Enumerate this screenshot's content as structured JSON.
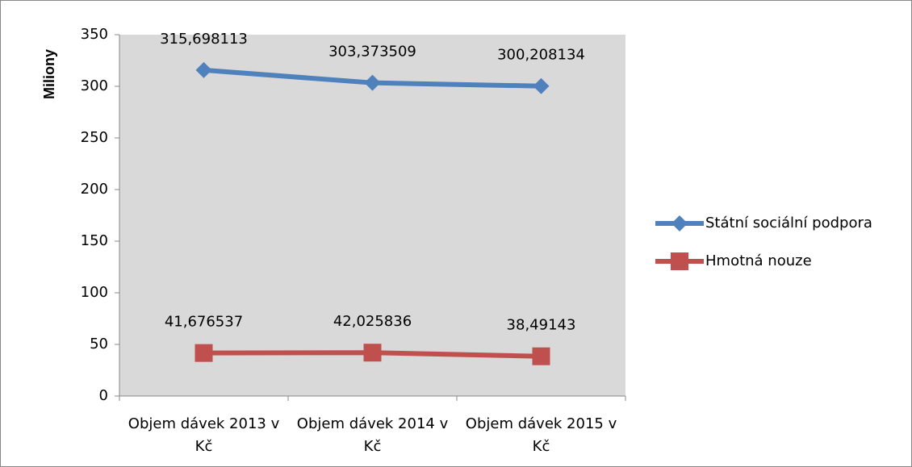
{
  "chart_data": {
    "type": "line",
    "y_label": "Miliony",
    "categories": [
      "Objem dávek 2013 v Kč",
      "Objem dávek 2014 v Kč",
      "Objem dávek 2015 v Kč"
    ],
    "series": [
      {
        "name": "Státní sociální podpora",
        "color": "#4f81bd",
        "marker": "diamond",
        "values": [
          315.698113,
          303.373509,
          300.208134
        ],
        "value_labels": [
          "315,698113",
          "303,373509",
          "300,208134"
        ]
      },
      {
        "name": "Hmotná nouze",
        "color": "#c0504d",
        "marker": "square",
        "values": [
          41.676537,
          42.025836,
          38.49143
        ],
        "value_labels": [
          "41,676537",
          "42,025836",
          "38,49143"
        ]
      }
    ],
    "ylim": [
      0,
      350
    ],
    "yticks": [
      0,
      50,
      100,
      150,
      200,
      250,
      300,
      350
    ],
    "grid": false,
    "legend": "right",
    "plot_background": "#d9d9d9"
  }
}
